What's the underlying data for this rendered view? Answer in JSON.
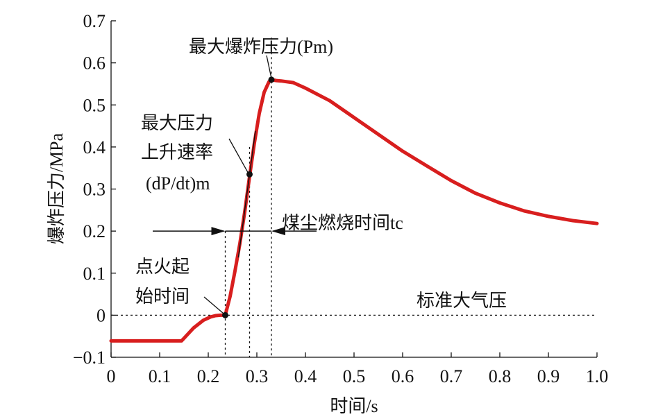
{
  "colors": {
    "curve": "#d81e1e",
    "axis": "#111111",
    "annotation": "#111111"
  },
  "chart_data": {
    "type": "line",
    "title": "",
    "xlabel": "时间/s",
    "ylabel": "爆炸压力/MPa",
    "xlim": [
      0,
      1.0
    ],
    "ylim": [
      -0.1,
      0.7
    ],
    "x_ticks": [
      "0",
      "0.1",
      "0.2",
      "0.3",
      "0.4",
      "0.5",
      "0.6",
      "0.7",
      "0.8",
      "0.9",
      "1.0"
    ],
    "y_ticks": [
      "−0.1",
      "0",
      "0.1",
      "0.2",
      "0.3",
      "0.4",
      "0.5",
      "0.6",
      "0.7"
    ],
    "grid": false,
    "series": [
      {
        "values_x": [
          0.0,
          0.05,
          0.1,
          0.145,
          0.15,
          0.17,
          0.19,
          0.205,
          0.215,
          0.225,
          0.235,
          0.245,
          0.255,
          0.265,
          0.275,
          0.285,
          0.295,
          0.305,
          0.315,
          0.325,
          0.33,
          0.34,
          0.35,
          0.375,
          0.4,
          0.45,
          0.5,
          0.55,
          0.6,
          0.65,
          0.7,
          0.75,
          0.8,
          0.85,
          0.9,
          0.95,
          1.0
        ],
        "values_y": [
          -0.061,
          -0.061,
          -0.061,
          -0.061,
          -0.055,
          -0.03,
          -0.012,
          -0.004,
          -0.001,
          0.0,
          0.0,
          0.045,
          0.105,
          0.17,
          0.245,
          0.33,
          0.41,
          0.48,
          0.53,
          0.555,
          0.56,
          0.558,
          0.557,
          0.553,
          0.54,
          0.51,
          0.47,
          0.43,
          0.39,
          0.355,
          0.32,
          0.29,
          0.267,
          0.248,
          0.235,
          0.225,
          0.218
        ]
      }
    ],
    "annotations": {
      "max_pressure": "最大爆炸压力(Pm)",
      "max_rate_line1": "最大压力",
      "max_rate_line2": "上升速率",
      "max_rate_line3": "(dP/dt)m",
      "ignition_line1": "点火起",
      "ignition_line2": "始时间",
      "burn_time": "煤尘燃烧时间tc",
      "atmosphere": "标准大气压"
    },
    "markers": {
      "ignition": [
        0.235,
        0.0
      ],
      "max_rate": [
        0.285,
        0.335
      ],
      "max_pressure": [
        0.33,
        0.56
      ]
    },
    "reference_lines": {
      "atmosphere_y": 0.0,
      "x_dotted": [
        0.235,
        0.285,
        0.33
      ],
      "burn_arrow_y": 0.2
    }
  }
}
